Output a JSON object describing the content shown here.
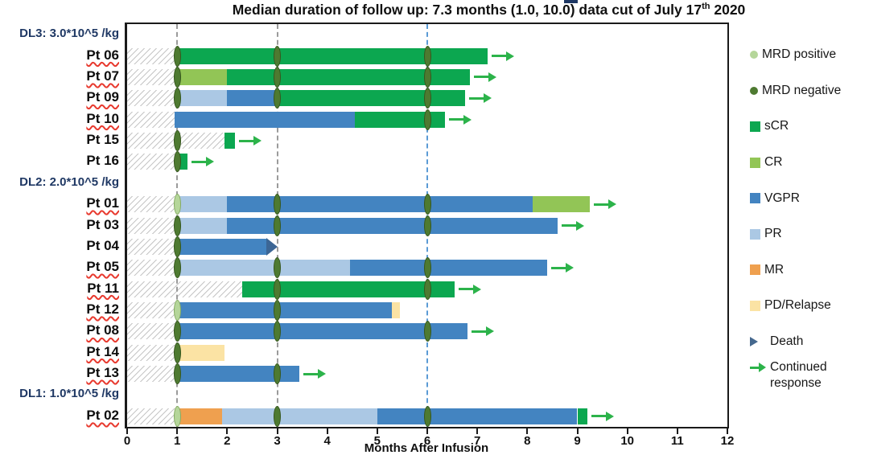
{
  "title": {
    "before_sup": "Median duration of follow up: 7.3 months (1.0, 10.0) data cut of July 17",
    "sup": "th",
    "after_sup": " 2020"
  },
  "colors": {
    "sCR": "#0ca750",
    "CR": "#92c556",
    "VGPR": "#4384c1",
    "PR": "#abc8e4",
    "MR": "#efa04f",
    "PD/Relapse": "#fbe3a4",
    "mrd_positive": "#b5d69a",
    "mrd_positive_border": "#85ab62",
    "mrd_negative": "#4e7a31",
    "mrd_negative_border": "#36571e",
    "death": "#3c6695",
    "continued_response": "#2cb34a",
    "gridline_gray": "#9b9b9b",
    "gridline_blue": "#5b9bd5",
    "group_label": "#1f3864",
    "spellcheck_red": "#e8392e"
  },
  "legend": {
    "items": [
      {
        "label": "MRD positive",
        "swatch": "circle",
        "color": "#b5d69a"
      },
      {
        "label": "MRD negative",
        "swatch": "circle",
        "color": "#4e7a31"
      },
      {
        "label": "sCR",
        "swatch": "square",
        "color": "#0ca750"
      },
      {
        "label": "CR",
        "swatch": "square",
        "color": "#92c556"
      },
      {
        "label": "VGPR",
        "swatch": "square",
        "color": "#4384c1"
      },
      {
        "label": "PR",
        "swatch": "square",
        "color": "#abc8e4"
      },
      {
        "label": "MR",
        "swatch": "square",
        "color": "#efa04f"
      },
      {
        "label": "PD/Relapse",
        "swatch": "square",
        "color": "#fbe3a4"
      },
      {
        "label": "Death",
        "swatch": "triangle",
        "color": "#45688e"
      },
      {
        "label": "Continued response",
        "swatch": "arrow",
        "color": "#2cb34a"
      }
    ]
  },
  "chart_data": {
    "type": "bar",
    "subtype": "horizontal-swimmer-plot",
    "x_axis": {
      "label": "Months After Infusion",
      "min": 0,
      "max": 12,
      "ticks": [
        0,
        1,
        2,
        3,
        4,
        5,
        6,
        7,
        8,
        9,
        10,
        11,
        12
      ]
    },
    "reference_lines": [
      {
        "x": 1,
        "style": "dashed",
        "color": "#9b9b9b"
      },
      {
        "x": 3,
        "style": "dashed",
        "color": "#9b9b9b"
      },
      {
        "x": 6,
        "style": "dashed",
        "color": "#5b9bd5"
      }
    ],
    "groups": [
      {
        "label": "DL3: 3.0*10^5 /kg",
        "patients": [
          {
            "id": "Pt 06",
            "spellcheck_underline": true,
            "hatch": [
              0,
              1
            ],
            "segments": [
              {
                "response": "sCR",
                "start": 1,
                "end": 7.2
              }
            ],
            "mrd_markers": [
              {
                "status": "negative",
                "month": 1
              },
              {
                "status": "negative",
                "month": 3
              },
              {
                "status": "negative",
                "month": 6
              }
            ],
            "end": "continued_response"
          },
          {
            "id": "Pt 07",
            "spellcheck_underline": true,
            "hatch": [
              0,
              1
            ],
            "segments": [
              {
                "response": "CR",
                "start": 1,
                "end": 2
              },
              {
                "response": "sCR",
                "start": 2,
                "end": 6.85
              }
            ],
            "mrd_markers": [
              {
                "status": "negative",
                "month": 1
              },
              {
                "status": "negative",
                "month": 3
              },
              {
                "status": "negative",
                "month": 6
              }
            ],
            "end": "continued_response"
          },
          {
            "id": "Pt 09",
            "spellcheck_underline": true,
            "hatch": [
              0,
              1
            ],
            "segments": [
              {
                "response": "PR",
                "start": 1,
                "end": 2
              },
              {
                "response": "VGPR",
                "start": 2,
                "end": 3
              },
              {
                "response": "sCR",
                "start": 3,
                "end": 6.75
              }
            ],
            "mrd_markers": [
              {
                "status": "negative",
                "month": 1
              },
              {
                "status": "negative",
                "month": 3
              },
              {
                "status": "negative",
                "month": 6
              }
            ],
            "end": "continued_response"
          },
          {
            "id": "Pt 10",
            "spellcheck_underline": true,
            "hatch": [
              0,
              0.95
            ],
            "segments": [
              {
                "response": "VGPR",
                "start": 0.95,
                "end": 4.55
              },
              {
                "response": "sCR",
                "start": 4.55,
                "end": 6.35
              }
            ],
            "mrd_markers": [
              {
                "status": "negative",
                "month": 6
              }
            ],
            "end": "continued_response"
          },
          {
            "id": "Pt 15",
            "spellcheck_underline": false,
            "hatch": [
              0,
              1.95
            ],
            "segments": [
              {
                "response": "sCR",
                "start": 1.95,
                "end": 2.15
              }
            ],
            "mrd_markers": [
              {
                "status": "negative",
                "month": 1
              }
            ],
            "end": "continued_response"
          },
          {
            "id": "Pt 16",
            "spellcheck_underline": false,
            "hatch": [
              0,
              1
            ],
            "segments": [
              {
                "response": "sCR",
                "start": 1,
                "end": 1.2
              }
            ],
            "mrd_markers": [
              {
                "status": "negative",
                "month": 1
              }
            ],
            "end": "continued_response"
          }
        ]
      },
      {
        "label": "DL2: 2.0*10^5 /kg",
        "patients": [
          {
            "id": "Pt 01",
            "spellcheck_underline": true,
            "hatch": [
              0,
              1
            ],
            "segments": [
              {
                "response": "PR",
                "start": 1,
                "end": 2
              },
              {
                "response": "VGPR",
                "start": 2,
                "end": 8.1
              },
              {
                "response": "CR",
                "start": 8.1,
                "end": 9.25
              }
            ],
            "mrd_markers": [
              {
                "status": "positive",
                "month": 1
              },
              {
                "status": "negative",
                "month": 3
              },
              {
                "status": "negative",
                "month": 6
              }
            ],
            "end": "continued_response"
          },
          {
            "id": "Pt 03",
            "spellcheck_underline": false,
            "hatch": [
              0,
              1
            ],
            "segments": [
              {
                "response": "PR",
                "start": 1,
                "end": 2
              },
              {
                "response": "VGPR",
                "start": 2,
                "end": 8.6
              }
            ],
            "mrd_markers": [
              {
                "status": "negative",
                "month": 1
              },
              {
                "status": "negative",
                "month": 3
              },
              {
                "status": "negative",
                "month": 6
              }
            ],
            "end": "continued_response"
          },
          {
            "id": "Pt 04",
            "spellcheck_underline": false,
            "hatch": [
              0,
              1
            ],
            "segments": [
              {
                "response": "VGPR",
                "start": 1,
                "end": 2.78
              }
            ],
            "mrd_markers": [
              {
                "status": "negative",
                "month": 1
              }
            ],
            "end": "death"
          },
          {
            "id": "Pt 05",
            "spellcheck_underline": true,
            "hatch": [
              0,
              1
            ],
            "segments": [
              {
                "response": "PR",
                "start": 1,
                "end": 4.45
              },
              {
                "response": "VGPR",
                "start": 4.45,
                "end": 8.4
              }
            ],
            "mrd_markers": [
              {
                "status": "negative",
                "month": 1
              },
              {
                "status": "negative",
                "month": 3
              },
              {
                "status": "negative",
                "month": 6
              }
            ],
            "end": "continued_response"
          },
          {
            "id": "Pt 11",
            "spellcheck_underline": true,
            "hatch": [
              0,
              2.3
            ],
            "segments": [
              {
                "response": "sCR",
                "start": 2.3,
                "end": 6.55
              }
            ],
            "mrd_markers": [
              {
                "status": "negative",
                "month": 3
              },
              {
                "status": "negative",
                "month": 6
              }
            ],
            "end": "continued_response"
          },
          {
            "id": "Pt 12",
            "spellcheck_underline": true,
            "hatch": [
              0,
              1
            ],
            "segments": [
              {
                "response": "VGPR",
                "start": 1,
                "end": 5.3
              },
              {
                "response": "PD/Relapse",
                "start": 5.3,
                "end": 5.45
              }
            ],
            "mrd_markers": [
              {
                "status": "positive",
                "month": 1
              },
              {
                "status": "negative",
                "month": 3
              }
            ],
            "end": null
          },
          {
            "id": "Pt 08",
            "spellcheck_underline": true,
            "hatch": [
              0,
              1
            ],
            "segments": [
              {
                "response": "VGPR",
                "start": 1,
                "end": 6.8
              }
            ],
            "mrd_markers": [
              {
                "status": "negative",
                "month": 1
              },
              {
                "status": "negative",
                "month": 3
              },
              {
                "status": "negative",
                "month": 6
              }
            ],
            "end": "continued_response"
          },
          {
            "id": "Pt 14",
            "spellcheck_underline": true,
            "hatch": [
              0,
              1
            ],
            "segments": [
              {
                "response": "PD/Relapse",
                "start": 1,
                "end": 1.95
              }
            ],
            "mrd_markers": [
              {
                "status": "negative",
                "month": 1
              }
            ],
            "end": null
          },
          {
            "id": "Pt 13",
            "spellcheck_underline": true,
            "hatch": [
              0,
              1
            ],
            "segments": [
              {
                "response": "VGPR",
                "start": 1,
                "end": 3.45
              }
            ],
            "mrd_markers": [
              {
                "status": "negative",
                "month": 1
              },
              {
                "status": "negative",
                "month": 3
              }
            ],
            "end": "continued_response"
          }
        ]
      },
      {
        "label": "DL1: 1.0*10^5 /kg",
        "patients": [
          {
            "id": "Pt 02",
            "spellcheck_underline": true,
            "hatch": [
              0,
              1
            ],
            "segments": [
              {
                "response": "MR",
                "start": 1,
                "end": 1.9
              },
              {
                "response": "PR",
                "start": 1.9,
                "end": 5.0
              },
              {
                "response": "VGPR",
                "start": 5.0,
                "end": 9.0
              },
              {
                "response": "sCR",
                "start": 9.0,
                "end": 9.2
              }
            ],
            "mrd_markers": [
              {
                "status": "positive",
                "month": 1
              },
              {
                "status": "negative",
                "month": 3
              },
              {
                "status": "negative",
                "month": 6
              }
            ],
            "end": "continued_response"
          }
        ]
      }
    ]
  }
}
